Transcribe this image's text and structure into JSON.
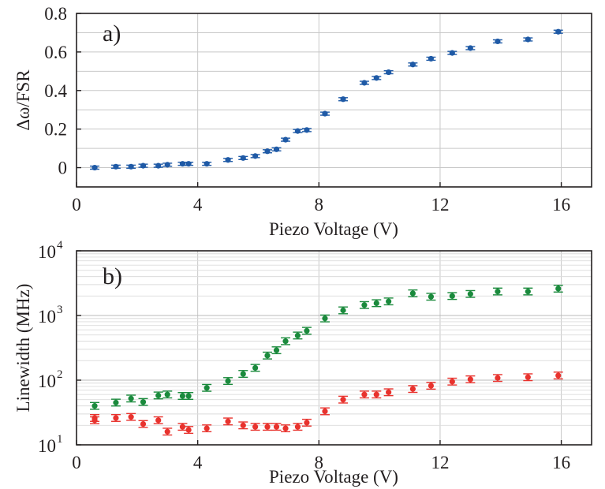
{
  "chart_data": [
    {
      "type": "scatter",
      "panel_label": "a)",
      "xlabel": "Piezo Voltage (V)",
      "ylabel": "Δω/FSR",
      "xlim": [
        0,
        17
      ],
      "ylim": [
        -0.1,
        0.8
      ],
      "xticks": [
        0,
        4,
        8,
        12,
        16
      ],
      "xtick_labels": [
        "0",
        "4",
        "8",
        "12",
        "16"
      ],
      "yticks": [
        0,
        0.2,
        0.4,
        0.6,
        0.8
      ],
      "ytick_labels": [
        "0",
        "0.2",
        "0.4",
        "0.6",
        "0.8"
      ],
      "grid": true,
      "series": [
        {
          "color": "#1f5aa6",
          "x": [
            0.6,
            1.3,
            1.8,
            2.2,
            2.7,
            3.0,
            3.5,
            3.7,
            4.3,
            5.0,
            5.5,
            5.9,
            6.3,
            6.6,
            6.9,
            7.3,
            7.6,
            8.2,
            8.8,
            9.5,
            9.9,
            10.3,
            11.1,
            11.7,
            12.4,
            13.0,
            13.9,
            14.9,
            15.9
          ],
          "y": [
            0.0,
            0.005,
            0.005,
            0.01,
            0.01,
            0.015,
            0.02,
            0.02,
            0.02,
            0.04,
            0.05,
            0.06,
            0.085,
            0.095,
            0.145,
            0.19,
            0.195,
            0.28,
            0.355,
            0.44,
            0.465,
            0.495,
            0.535,
            0.565,
            0.595,
            0.62,
            0.655,
            0.665,
            0.705
          ],
          "err": [
            0.008,
            0.008,
            0.008,
            0.008,
            0.008,
            0.008,
            0.008,
            0.008,
            0.008,
            0.008,
            0.008,
            0.008,
            0.008,
            0.008,
            0.008,
            0.008,
            0.008,
            0.008,
            0.008,
            0.008,
            0.008,
            0.008,
            0.008,
            0.008,
            0.008,
            0.008,
            0.008,
            0.008,
            0.008
          ]
        }
      ]
    },
    {
      "type": "scatter",
      "panel_label": "b)",
      "xlabel": "Piezo Voltage (V)",
      "ylabel": "Linewidth (MHz)",
      "xlim": [
        0,
        17
      ],
      "ylim": [
        10,
        10000
      ],
      "yscale": "log",
      "xticks": [
        0,
        4,
        8,
        12,
        16
      ],
      "xtick_labels": [
        "0",
        "4",
        "8",
        "12",
        "16"
      ],
      "yticks": [
        10,
        100,
        1000,
        10000
      ],
      "ytick_labels": [
        [
          "10",
          "1"
        ],
        [
          "10",
          "2"
        ],
        [
          "10",
          "3"
        ],
        [
          "10",
          "4"
        ]
      ],
      "grid": true,
      "series": [
        {
          "color": "#1a8a3c",
          "x": [
            0.6,
            1.3,
            1.8,
            2.2,
            2.7,
            3.0,
            3.5,
            3.7,
            4.3,
            5.0,
            5.5,
            5.9,
            6.3,
            6.6,
            6.9,
            7.3,
            7.6,
            8.2,
            8.8,
            9.5,
            9.9,
            10.3,
            11.1,
            11.7,
            12.4,
            13.0,
            13.9,
            14.9,
            15.9
          ],
          "y": [
            40,
            45,
            52,
            46,
            58,
            60,
            57,
            57,
            76,
            97,
            125,
            155,
            240,
            290,
            400,
            490,
            580,
            900,
            1200,
            1450,
            1550,
            1650,
            2200,
            1950,
            2000,
            2150,
            2350,
            2350,
            2600
          ],
          "err": [
            0.08,
            0.08,
            0.08,
            0.08,
            0.08,
            0.08,
            0.08,
            0.08,
            0.08,
            0.08,
            0.08,
            0.08,
            0.08,
            0.08,
            0.08,
            0.08,
            0.08,
            0.08,
            0.08,
            0.08,
            0.08,
            0.08,
            0.08,
            0.08,
            0.08,
            0.08,
            0.08,
            0.08,
            0.08
          ]
        },
        {
          "color": "#e8322d",
          "x": [
            0.6,
            0.6,
            1.3,
            1.8,
            2.2,
            2.7,
            3.0,
            3.5,
            3.7,
            4.3,
            5.0,
            5.5,
            5.9,
            6.3,
            6.6,
            6.9,
            7.3,
            7.6,
            8.2,
            8.8,
            9.5,
            9.9,
            10.3,
            11.1,
            11.7,
            12.4,
            13.0,
            13.9,
            14.9,
            15.9
          ],
          "y": [
            26,
            24,
            26,
            27,
            21,
            24,
            16,
            19,
            17,
            18,
            23,
            20,
            19,
            19,
            19,
            18,
            19,
            22,
            33,
            50,
            60,
            60,
            65,
            73,
            82,
            95,
            103,
            108,
            111,
            118
          ],
          "err": [
            0.08,
            0.08,
            0.08,
            0.08,
            0.08,
            0.08,
            0.08,
            0.08,
            0.08,
            0.08,
            0.08,
            0.08,
            0.08,
            0.08,
            0.08,
            0.08,
            0.08,
            0.08,
            0.08,
            0.08,
            0.08,
            0.08,
            0.08,
            0.08,
            0.08,
            0.08,
            0.08,
            0.08,
            0.08,
            0.08
          ]
        }
      ]
    }
  ]
}
